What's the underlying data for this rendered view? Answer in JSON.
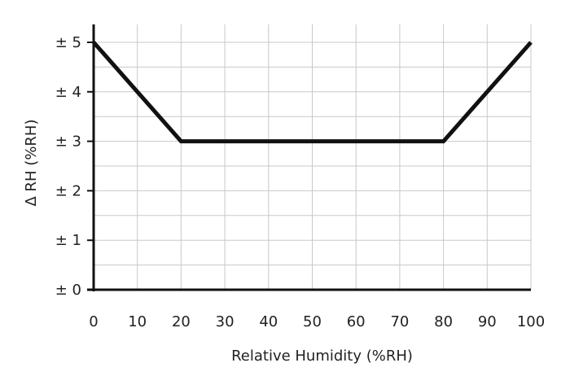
{
  "chart_data": {
    "type": "line",
    "xlabel": "Relative Humidity (%RH)",
    "ylabel": "Δ RH (%RH)",
    "xlim": [
      0,
      100
    ],
    "ylim": [
      0,
      5
    ],
    "x_ticks": [
      "0",
      "10",
      "20",
      "30",
      "40",
      "50",
      "60",
      "70",
      "80",
      "90",
      "100"
    ],
    "y_ticks": [
      "± 0",
      "± 1",
      "± 2",
      "± 3",
      "± 4",
      "± 5"
    ],
    "grid": true,
    "series": [
      {
        "x": [
          0,
          20,
          80,
          100
        ],
        "y": [
          5,
          3,
          3,
          5
        ],
        "color": "#111111"
      }
    ]
  }
}
